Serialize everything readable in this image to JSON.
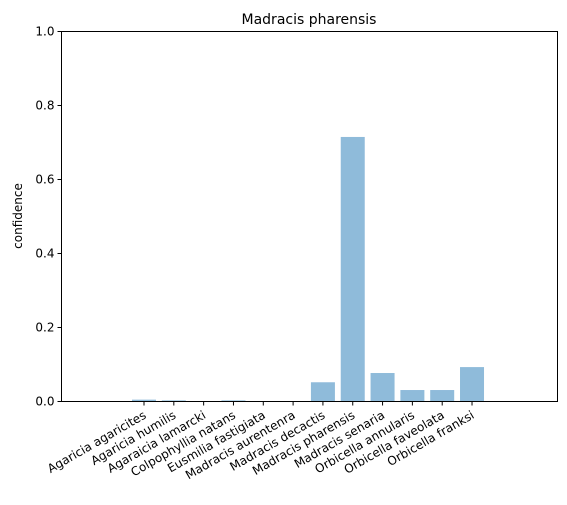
{
  "chart_data": {
    "type": "bar",
    "title": "Madracis pharensis",
    "xlabel": "",
    "ylabel": "confidence",
    "ylim": [
      0,
      1.0
    ],
    "yticks": [
      "0.0",
      "0.2",
      "0.4",
      "0.6",
      "0.8",
      "1.0"
    ],
    "categories": [
      "Agaricia agaricites",
      "Agaricia humilis",
      "Agaraicia lamarcki",
      "Colpophyllia natans",
      "Eusmilia fastigiata",
      "Madracis aurentenra",
      "Madracis decactis",
      "Madracis pharensis",
      "Madracis senaria",
      "Orbicella annularis",
      "Orbicella faveolata",
      "Orbicella franksi"
    ],
    "values": [
      0.005,
      0.003,
      0.001,
      0.003,
      0.001,
      0.001,
      0.052,
      0.715,
      0.077,
      0.031,
      0.031,
      0.093
    ],
    "bar_color": "#8fbbda",
    "grid": false,
    "legend": "none"
  }
}
